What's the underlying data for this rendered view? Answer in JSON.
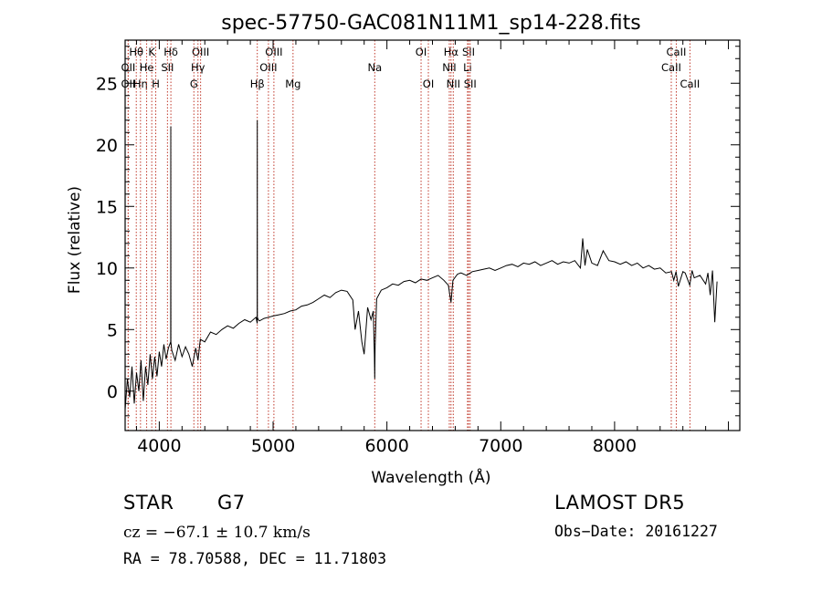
{
  "chart_data": {
    "type": "line",
    "title": "spec-57750-GAC081N11M1_sp14-228.fits",
    "xlabel": "Wavelength (Å)",
    "ylabel": "Flux (relative)",
    "xlim": [
      3700,
      9100
    ],
    "ylim": [
      -3.2,
      28.5
    ],
    "xticks": [
      4000,
      5000,
      6000,
      7000,
      8000
    ],
    "yticks": [
      0,
      5,
      10,
      15,
      20,
      25
    ],
    "grid": false,
    "series": [
      {
        "x": [
          3700,
          3720,
          3740,
          3760,
          3780,
          3800,
          3820,
          3840,
          3860,
          3880,
          3900,
          3920,
          3940,
          3960,
          3980,
          4000,
          4020,
          4040,
          4060,
          4080,
          4100,
          4101,
          4102,
          4110,
          4140,
          4170,
          4200,
          4230,
          4260,
          4290,
          4320,
          4340,
          4360,
          4400,
          4450,
          4500,
          4550,
          4600,
          4650,
          4700,
          4750,
          4800,
          4850,
          4860,
          4861,
          4862,
          4870,
          4880,
          4920,
          4960,
          5000,
          5050,
          5100,
          5150,
          5200,
          5250,
          5300,
          5350,
          5400,
          5450,
          5500,
          5550,
          5600,
          5650,
          5700,
          5720,
          5750,
          5780,
          5800,
          5830,
          5860,
          5880,
          5890,
          5893,
          5896,
          5910,
          5950,
          6000,
          6050,
          6100,
          6150,
          6200,
          6250,
          6300,
          6350,
          6400,
          6450,
          6500,
          6540,
          6563,
          6580,
          6620,
          6650,
          6700,
          6750,
          6800,
          6850,
          6900,
          6950,
          7000,
          7050,
          7100,
          7150,
          7200,
          7250,
          7300,
          7350,
          7400,
          7450,
          7500,
          7550,
          7600,
          7650,
          7700,
          7720,
          7740,
          7760,
          7800,
          7850,
          7900,
          7950,
          8000,
          8050,
          8100,
          8150,
          8200,
          8250,
          8300,
          8350,
          8400,
          8450,
          8500,
          8520,
          8540,
          8560,
          8600,
          8620,
          8660,
          8680,
          8700,
          8750,
          8800,
          8820,
          8840,
          8860,
          8880,
          8900
        ],
        "y": [
          -1.5,
          1.0,
          -0.5,
          2.0,
          -1.0,
          1.5,
          0.0,
          2.5,
          -0.8,
          2.0,
          0.5,
          3.0,
          1.0,
          2.8,
          1.2,
          3.2,
          2.0,
          3.8,
          2.6,
          3.5,
          4.0,
          21.5,
          4.0,
          3.3,
          2.5,
          3.8,
          2.8,
          3.6,
          3.0,
          2.0,
          3.5,
          2.5,
          4.2,
          4.0,
          4.8,
          4.6,
          5.0,
          5.3,
          5.1,
          5.5,
          5.8,
          5.6,
          6.0,
          5.5,
          22.0,
          6.0,
          5.8,
          5.7,
          5.9,
          6.0,
          6.1,
          6.2,
          6.3,
          6.5,
          6.6,
          6.9,
          7.0,
          7.2,
          7.5,
          7.8,
          7.6,
          8.0,
          8.2,
          8.1,
          7.4,
          5.0,
          6.5,
          4.0,
          3.0,
          6.8,
          5.8,
          6.5,
          3.0,
          1.0,
          3.6,
          7.5,
          8.2,
          8.4,
          8.7,
          8.6,
          8.9,
          9.0,
          8.8,
          9.1,
          9.0,
          9.2,
          9.4,
          9.0,
          8.6,
          7.2,
          9.0,
          9.5,
          9.6,
          9.4,
          9.7,
          9.8,
          9.9,
          10.0,
          9.8,
          10.0,
          10.2,
          10.3,
          10.1,
          10.4,
          10.3,
          10.5,
          10.2,
          10.4,
          10.6,
          10.3,
          10.5,
          10.4,
          10.6,
          10.0,
          12.4,
          10.2,
          11.5,
          10.4,
          10.2,
          11.4,
          10.6,
          10.5,
          10.3,
          10.5,
          10.2,
          10.4,
          10.0,
          10.2,
          9.9,
          10.0,
          9.6,
          9.7,
          9.0,
          9.7,
          8.5,
          9.7,
          9.6,
          8.6,
          9.8,
          9.2,
          9.4,
          8.7,
          9.6,
          7.8,
          9.8,
          5.6,
          8.9
        ]
      }
    ],
    "lines": [
      {
        "label": "Hθ",
        "x": 3798,
        "pos": "top"
      },
      {
        "label": "OII",
        "x": 3727,
        "pos": "mid"
      },
      {
        "label": "OII",
        "x": 3727,
        "pos": "bot"
      },
      {
        "label": "Hη",
        "x": 3835,
        "pos": "bot"
      },
      {
        "label": "He",
        "x": 3889,
        "pos": "mid"
      },
      {
        "label": "K",
        "x": 3934,
        "pos": "top"
      },
      {
        "label": "H",
        "x": 3969,
        "pos": "bot"
      },
      {
        "label": "Hδ",
        "x": 4102,
        "pos": "top"
      },
      {
        "label": "SII",
        "x": 4072,
        "pos": "mid"
      },
      {
        "label": "OIII",
        "x": 4363,
        "pos": "top"
      },
      {
        "label": "Hγ",
        "x": 4340,
        "pos": "mid"
      },
      {
        "label": "G",
        "x": 4304,
        "pos": "bot"
      },
      {
        "label": "OIII",
        "x": 5007,
        "pos": "top"
      },
      {
        "label": "OIII",
        "x": 4959,
        "pos": "mid"
      },
      {
        "label": "Hβ",
        "x": 4861,
        "pos": "bot"
      },
      {
        "label": "Mg",
        "x": 5175,
        "pos": "bot"
      },
      {
        "label": "Na",
        "x": 5893,
        "pos": "mid"
      },
      {
        "label": "OI",
        "x": 6300,
        "pos": "top"
      },
      {
        "label": "OI",
        "x": 6364,
        "pos": "bot"
      },
      {
        "label": "Hα",
        "x": 6563,
        "pos": "top"
      },
      {
        "label": "NII",
        "x": 6548,
        "pos": "mid"
      },
      {
        "label": "NII",
        "x": 6583,
        "pos": "bot"
      },
      {
        "label": "SII",
        "x": 6717,
        "pos": "top"
      },
      {
        "label": "Li",
        "x": 6708,
        "pos": "mid"
      },
      {
        "label": "SII",
        "x": 6731,
        "pos": "bot"
      },
      {
        "label": "CaII",
        "x": 8542,
        "pos": "top"
      },
      {
        "label": "CaII",
        "x": 8498,
        "pos": "mid"
      },
      {
        "label": "CaII",
        "x": 8662,
        "pos": "bot"
      }
    ]
  },
  "info": {
    "class": "STAR",
    "subclass": "G7",
    "survey": "LAMOST DR5",
    "cz": "cz = −67.1 ± 10.7 km/s",
    "obs_date": "Obs−Date: 20161227",
    "radec": "RA =  78.70588, DEC =  11.71803"
  }
}
